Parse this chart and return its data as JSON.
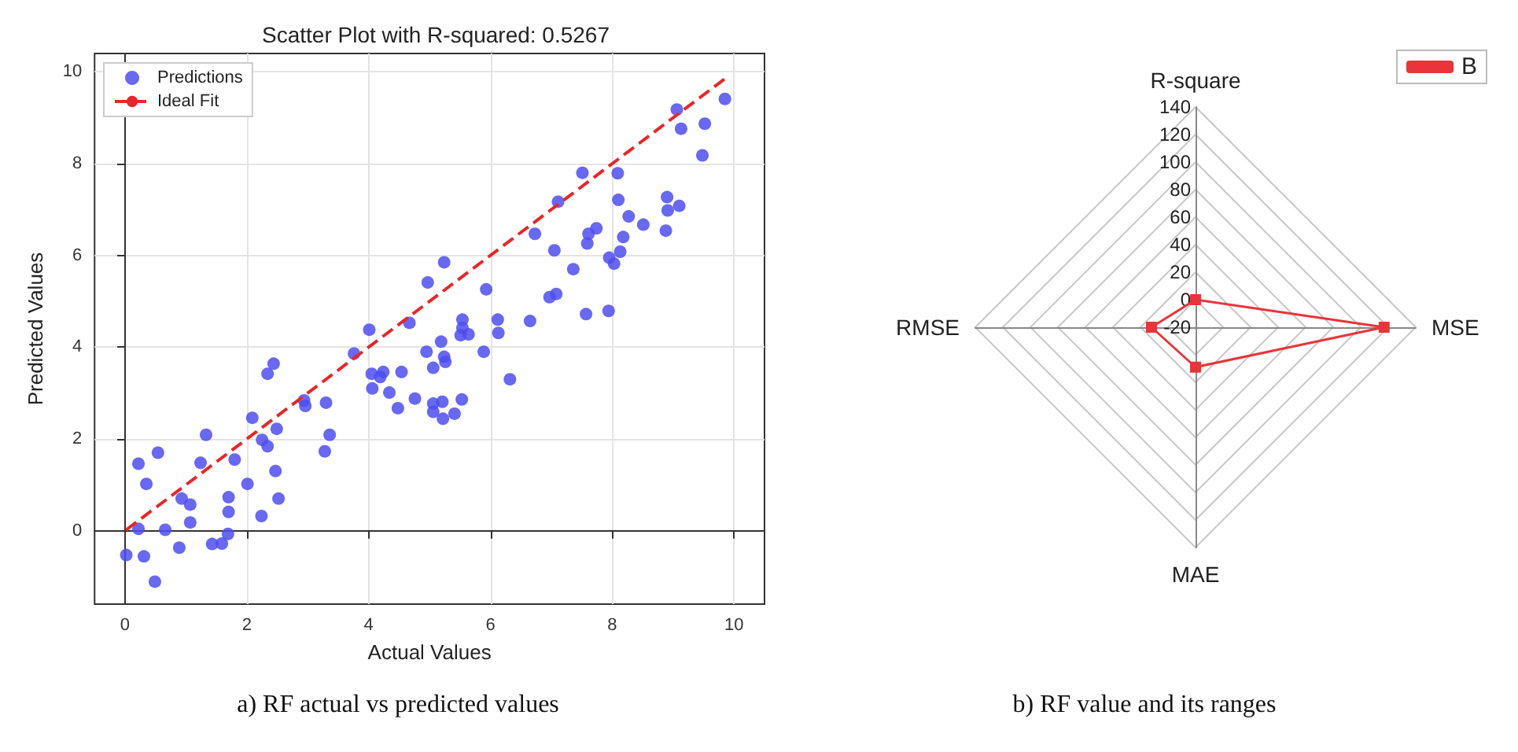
{
  "chart_data": [
    {
      "type": "scatter",
      "title": "Scatter Plot with R-squared: 0.5267",
      "xlabel": "Actual Values",
      "ylabel": "Predicted Values",
      "annotations": [
        "a) RF actual vs predicted values"
      ],
      "xlim": [
        -0.5,
        10.5
      ],
      "ylim": [
        -1.6,
        10.4
      ],
      "xticks": [
        0,
        2,
        4,
        6,
        8,
        10
      ],
      "yticks": [
        0,
        2,
        4,
        6,
        8,
        10
      ],
      "grid": true,
      "legend": "top left",
      "marker": "circle",
      "series": [
        {
          "name": "Predictions",
          "type": "scatter",
          "color": "#4d4df0",
          "x": [
            0.02,
            0.22,
            0.35,
            0.54,
            0.22,
            0.31,
            0.49,
            0.66,
            0.89,
            0.93,
            1.07,
            1.07,
            1.24,
            1.33,
            1.43,
            1.59,
            1.69,
            1.7,
            1.7,
            1.8,
            2.01,
            2.09,
            2.24,
            2.25,
            2.34,
            2.34,
            2.44,
            2.49,
            2.47,
            2.52,
            2.94,
            2.96,
            3.3,
            3.36,
            3.28,
            3.76,
            4.01,
            4.05,
            4.06,
            4.19,
            4.24,
            4.34,
            4.48,
            4.54,
            4.67,
            4.76,
            4.95,
            5.19,
            5.06,
            5.24,
            5.26,
            5.06,
            5.06,
            5.21,
            5.22,
            5.41,
            5.53,
            5.54,
            5.54,
            5.51,
            5.64,
            5.89,
            6.12,
            6.13,
            6.32,
            6.65,
            7.57,
            7.94,
            4.97,
            5.24,
            5.93,
            6.73,
            7.05,
            6.97,
            7.08,
            7.36,
            7.11,
            7.51,
            7.59,
            7.61,
            7.74,
            7.95,
            8.03,
            8.13,
            8.09,
            8.1,
            8.18,
            8.27,
            8.51,
            8.88,
            8.9,
            8.91,
            9.1,
            9.06,
            9.13,
            9.52,
            9.48,
            9.85
          ],
          "values": [
            -0.53,
            1.46,
            1.02,
            1.7,
            0.04,
            -0.56,
            -1.11,
            0.02,
            -0.37,
            0.7,
            0.57,
            0.18,
            1.48,
            2.09,
            -0.29,
            -0.28,
            -0.07,
            0.41,
            0.73,
            1.55,
            1.02,
            2.46,
            0.32,
            1.98,
            1.84,
            3.42,
            3.64,
            2.22,
            1.3,
            0.7,
            2.84,
            2.72,
            2.79,
            2.09,
            1.73,
            3.86,
            4.38,
            3.42,
            3.1,
            3.35,
            3.46,
            3.01,
            2.67,
            3.46,
            4.53,
            2.88,
            3.9,
            4.12,
            3.55,
            3.79,
            3.68,
            2.77,
            2.59,
            2.81,
            2.44,
            2.55,
            2.86,
            4.6,
            4.42,
            4.26,
            4.28,
            3.9,
            4.6,
            4.31,
            3.3,
            4.57,
            4.72,
            4.79,
            5.41,
            5.85,
            5.26,
            6.47,
            6.11,
            5.09,
            5.16,
            5.7,
            7.17,
            7.8,
            6.26,
            6.47,
            6.59,
            5.95,
            5.82,
            6.08,
            7.79,
            7.21,
            6.4,
            6.85,
            6.67,
            6.54,
            7.27,
            6.98,
            7.08,
            9.18,
            8.76,
            8.87,
            8.18,
            9.41
          ]
        },
        {
          "name": "Ideal Fit",
          "type": "line",
          "color": "#e8262a",
          "line_style": "dashed",
          "marker": "none",
          "x": [
            0.02,
            9.85
          ],
          "values": [
            0.02,
            9.85
          ]
        }
      ]
    },
    {
      "type": "radar",
      "categories": [
        "R-square",
        "MSE",
        "MAE",
        "RMSE"
      ],
      "ylim": [
        -20,
        140
      ],
      "yticks": [
        -20,
        0,
        20,
        40,
        60,
        80,
        100,
        120,
        140
      ],
      "grid": true,
      "legend": "top right",
      "marker": "square",
      "annotations": [
        "b) RF value and its ranges"
      ],
      "series": [
        {
          "name": "B",
          "color": "#e8343a",
          "values": [
            0,
            117,
            9,
            12
          ]
        }
      ]
    }
  ]
}
